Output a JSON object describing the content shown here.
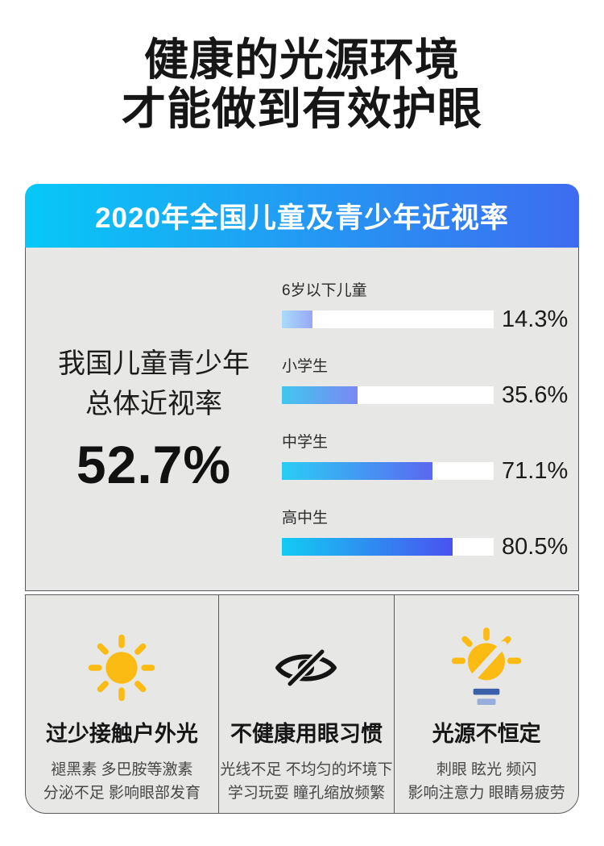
{
  "header": {
    "title_line1": "健康的光源环境",
    "title_line2": "才能做到有效护眼"
  },
  "chart_data": {
    "type": "bar",
    "orientation": "horizontal",
    "title": "2020年全国儿童及青少年近视率",
    "categories": [
      "6岁以下儿童",
      "小学生",
      "中学生",
      "高中生"
    ],
    "values": [
      14.3,
      35.6,
      71.1,
      80.5
    ],
    "value_labels": [
      "14.3%",
      "35.6%",
      "71.1%",
      "80.5%"
    ],
    "xlim": [
      0,
      100
    ],
    "grid": false,
    "legend": false,
    "summary": {
      "line1": "我国儿童青少年",
      "line2": "总体近视率",
      "value": "52.7%"
    },
    "bar_gradients": [
      [
        "#aadcfa",
        "#98a7f5"
      ],
      [
        "#40c7ef",
        "#7b87f2"
      ],
      [
        "#2acdf4",
        "#5b68f1"
      ],
      [
        "#12cbf2",
        "#4a52f0"
      ]
    ],
    "track_color": "#ffffff"
  },
  "factors": [
    {
      "icon": "sun-icon",
      "title": "过少接触户外光",
      "line1": "褪黑素 多巴胺等激素",
      "line2": "分泌不足 影响眼部发育"
    },
    {
      "icon": "eye-off-icon",
      "title": "不健康用眼习惯",
      "line1": "光线不足 不均匀的坏境下",
      "line2": "学习玩耍 瞳孔缩放频繁"
    },
    {
      "icon": "bulb-flicker-icon",
      "title": "光源不恒定",
      "line1": "刺眼 眩光 频闪",
      "line2": "影响注意力 眼睛易疲劳"
    }
  ],
  "colors": {
    "banner_gradient_start": "#07c8f7",
    "banner_gradient_end": "#3e6cf0",
    "panel_background": "#e7e7e6",
    "panel_border": "#5a5b5e",
    "title_text": "#161616",
    "sun_yellow": "#fbbb12",
    "eye_black": "#141414",
    "bulb_base_dark": "#3c5fa9",
    "bulb_base_light": "#96aed9"
  }
}
